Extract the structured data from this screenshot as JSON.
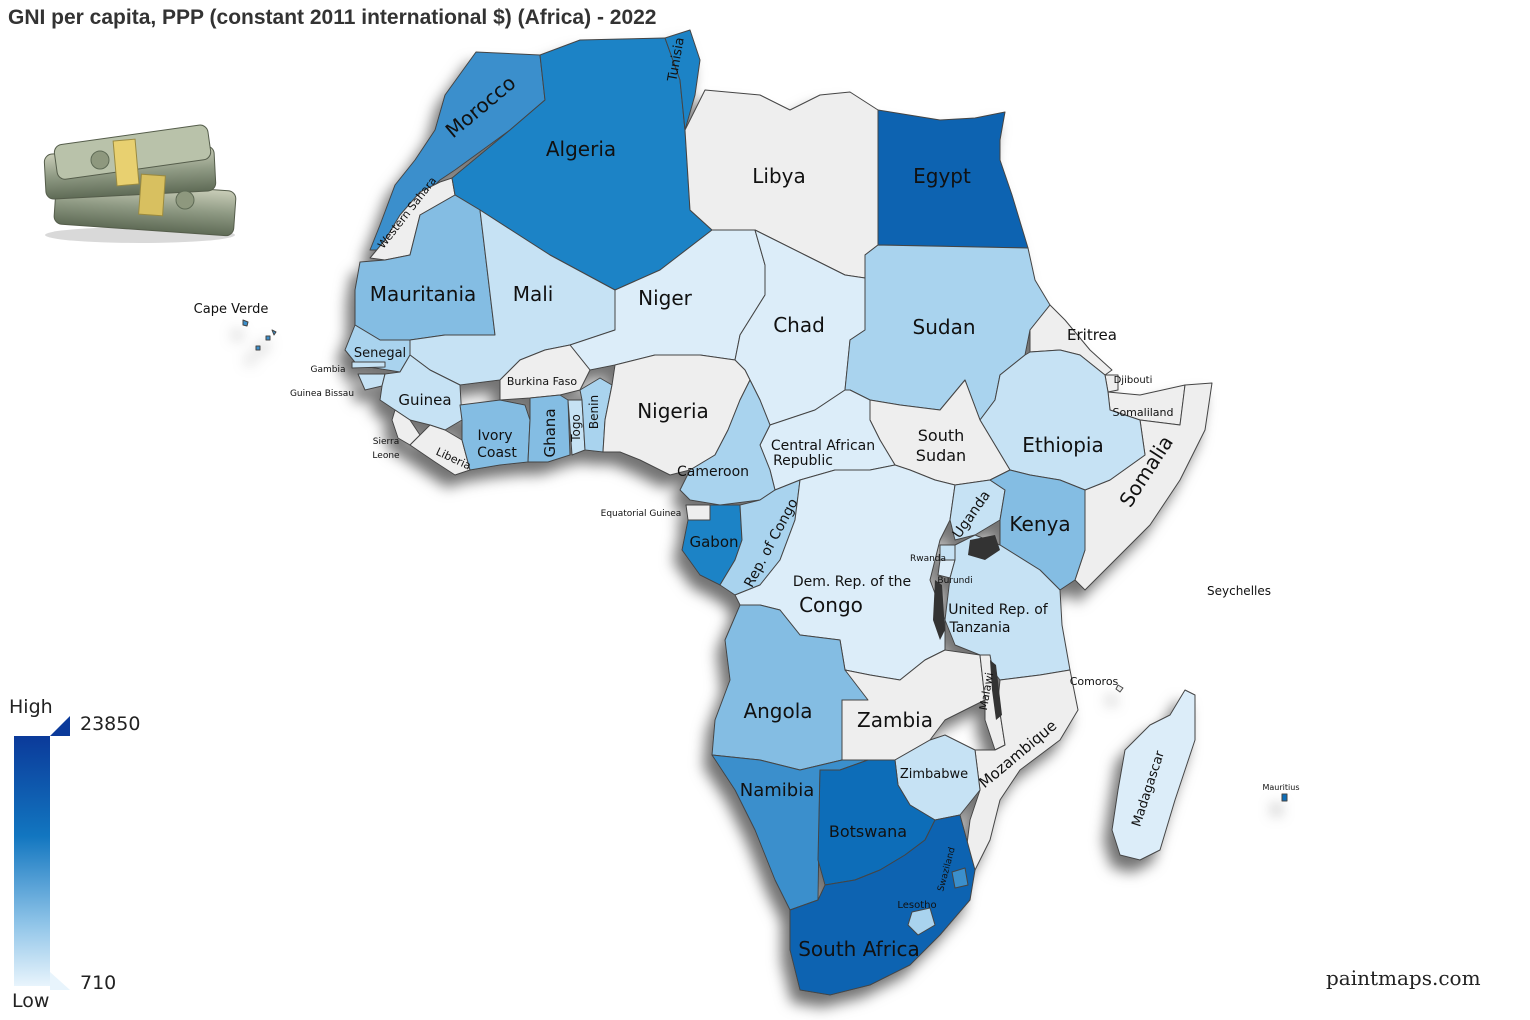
{
  "title": "GNI per capita, PPP (constant 2011 international $) (Africa) - 2022",
  "credit": "paintmaps.com",
  "legend": {
    "high_label": "High",
    "low_label": "Low",
    "max_value": "23850",
    "min_value": "710"
  },
  "colors": {
    "very_light": "#dcedf9",
    "light": "#c6e2f4",
    "light_mid": "#a9d3ee",
    "mid": "#84bde3",
    "mid_dark": "#3a8fcc",
    "dark": "#1f83c6",
    "darker": "#0f6db8",
    "darkest": "#0b63b1",
    "no_data": "#eeeeee",
    "border": "#444444",
    "legend_top": "#0b3a9a"
  },
  "countries": [
    {
      "name": "Morocco",
      "color": "mid_dark"
    },
    {
      "name": "Algeria",
      "color": "dark"
    },
    {
      "name": "Tunisia",
      "color": "dark"
    },
    {
      "name": "Libya",
      "color": "no_data"
    },
    {
      "name": "Egypt",
      "color": "darkest"
    },
    {
      "name": "Western Sahara",
      "color": "no_data"
    },
    {
      "name": "Mauritania",
      "color": "mid"
    },
    {
      "name": "Mali",
      "color": "light"
    },
    {
      "name": "Niger",
      "color": "very_light"
    },
    {
      "name": "Chad",
      "color": "very_light"
    },
    {
      "name": "Sudan",
      "color": "light_mid"
    },
    {
      "name": "Eritrea",
      "color": "no_data"
    },
    {
      "name": "Djibouti",
      "color": "no_data"
    },
    {
      "name": "Somaliland",
      "color": "no_data"
    },
    {
      "name": "Somalia",
      "color": "no_data"
    },
    {
      "name": "Ethiopia",
      "color": "light"
    },
    {
      "name": "South Sudan",
      "color": "no_data"
    },
    {
      "name": "Central African Republic",
      "color": "very_light"
    },
    {
      "name": "Nigeria",
      "color": "no_data"
    },
    {
      "name": "Cameroon",
      "color": "light_mid"
    },
    {
      "name": "Senegal",
      "color": "light_mid"
    },
    {
      "name": "Gambia",
      "color": "light"
    },
    {
      "name": "Guinea Bissau",
      "color": "light"
    },
    {
      "name": "Guinea",
      "color": "light"
    },
    {
      "name": "Sierra Leone",
      "color": "no_data"
    },
    {
      "name": "Liberia",
      "color": "no_data"
    },
    {
      "name": "Ivory Coast",
      "color": "mid"
    },
    {
      "name": "Burkina Faso",
      "color": "no_data"
    },
    {
      "name": "Ghana",
      "color": "mid"
    },
    {
      "name": "Togo",
      "color": "light"
    },
    {
      "name": "Benin",
      "color": "light_mid"
    },
    {
      "name": "Equatorial Guinea",
      "color": "no_data"
    },
    {
      "name": "Gabon",
      "color": "dark"
    },
    {
      "name": "Rep. of Congo",
      "color": "light_mid"
    },
    {
      "name": "Dem. Rep. of the Congo",
      "color": "very_light"
    },
    {
      "name": "Uganda",
      "color": "light"
    },
    {
      "name": "Kenya",
      "color": "mid"
    },
    {
      "name": "Rwanda",
      "color": "light"
    },
    {
      "name": "Burundi",
      "color": "very_light"
    },
    {
      "name": "United Rep. of Tanzania",
      "color": "light"
    },
    {
      "name": "Angola",
      "color": "mid"
    },
    {
      "name": "Zambia",
      "color": "no_data"
    },
    {
      "name": "Malawi",
      "color": "no_data"
    },
    {
      "name": "Mozambique",
      "color": "no_data"
    },
    {
      "name": "Zimbabwe",
      "color": "light"
    },
    {
      "name": "Namibia",
      "color": "mid_dark"
    },
    {
      "name": "Botswana",
      "color": "darker"
    },
    {
      "name": "South Africa",
      "color": "darkest"
    },
    {
      "name": "Lesotho",
      "color": "light_mid"
    },
    {
      "name": "Swaziland",
      "color": "mid_dark"
    },
    {
      "name": "Madagascar",
      "color": "very_light"
    },
    {
      "name": "Comoros",
      "color": "no_data"
    },
    {
      "name": "Seychelles",
      "color": "no_data"
    },
    {
      "name": "Mauritius",
      "color": "darker"
    },
    {
      "name": "Cape Verde",
      "color": "mid_dark"
    }
  ],
  "labels": {
    "morocco": "Morocco",
    "algeria": "Algeria",
    "tunisia": "Tunisia",
    "libya": "Libya",
    "egypt": "Egypt",
    "western_sahara": "Western Sahara",
    "mauritania": "Mauritania",
    "mali": "Mali",
    "niger": "Niger",
    "chad": "Chad",
    "sudan": "Sudan",
    "eritrea": "Eritrea",
    "djibouti": "Djibouti",
    "somaliland": "Somaliland",
    "somalia": "Somalia",
    "ethiopia": "Ethiopia",
    "south_sudan_1": "South",
    "south_sudan_2": "Sudan",
    "car_1": "Central African",
    "car_2": "Republic",
    "nigeria": "Nigeria",
    "cameroon": "Cameroon",
    "senegal": "Senegal",
    "gambia": "Gambia",
    "guinea_bissau": "Guinea Bissau",
    "guinea": "Guinea",
    "sierra_leone_1": "Sierra",
    "sierra_leone_2": "Leone",
    "liberia": "Liberia",
    "ivory_coast_1": "Ivory",
    "ivory_coast_2": "Coast",
    "burkina_faso": "Burkina Faso",
    "ghana": "Ghana",
    "togo": "Togo",
    "benin": "Benin",
    "equatorial_guinea": "Equatorial Guinea",
    "gabon": "Gabon",
    "rep_congo": "Rep. of Congo",
    "drc_1": "Dem. Rep. of the",
    "drc_2": "Congo",
    "uganda": "Uganda",
    "kenya": "Kenya",
    "rwanda": "Rwanda",
    "burundi": "Burundi",
    "tanzania_1": "United Rep. of",
    "tanzania_2": "Tanzania",
    "angola": "Angola",
    "zambia": "Zambia",
    "malawi": "Malawi",
    "mozambique": "Mozambique",
    "zimbabwe": "Zimbabwe",
    "namibia": "Namibia",
    "botswana": "Botswana",
    "south_africa": "South Africa",
    "lesotho": "Lesotho",
    "swaziland": "Swaziland",
    "madagascar": "Madagascar",
    "comoros": "Comoros",
    "seychelles": "Seychelles",
    "mauritius": "Mauritius",
    "cape_verde": "Cape Verde"
  }
}
